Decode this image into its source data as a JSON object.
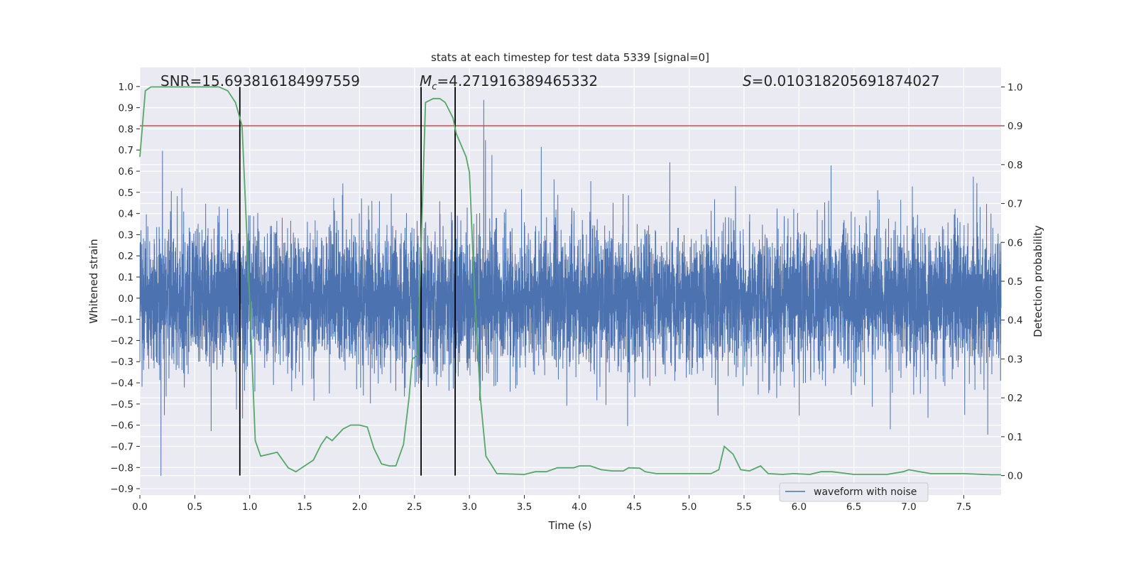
{
  "chart_data": {
    "type": "line",
    "title": "stats at each timestep for test data 5339 [signal=0]",
    "xlabel": "Time (s)",
    "ylabel": "Whitened strain",
    "ylabel_right": "Detection probability",
    "xlim": [
      0,
      7.84
    ],
    "ylim": [
      -0.93,
      1.09
    ],
    "ylim_right": [
      -0.05,
      1.05
    ],
    "grid": true,
    "x_ticks": [
      "0.0",
      "0.5",
      "1.0",
      "1.5",
      "2.0",
      "2.5",
      "3.0",
      "3.5",
      "4.0",
      "4.5",
      "5.0",
      "5.5",
      "6.0",
      "6.5",
      "7.0",
      "7.5"
    ],
    "x_tick_values": [
      0,
      0.5,
      1,
      1.5,
      2,
      2.5,
      3,
      3.5,
      4,
      4.5,
      5,
      5.5,
      6,
      6.5,
      7,
      7.5
    ],
    "y_ticks": [
      "1.0",
      "0.9",
      "0.8",
      "0.7",
      "0.6",
      "0.5",
      "0.4",
      "0.3",
      "0.2",
      "0.1",
      "0.0",
      "−0.1",
      "−0.2",
      "−0.3",
      "−0.4",
      "−0.5",
      "−0.6",
      "−0.7",
      "−0.8",
      "−0.9"
    ],
    "y_tick_values": [
      1,
      0.9,
      0.8,
      0.7,
      0.6,
      0.5,
      0.4,
      0.3,
      0.2,
      0.1,
      0,
      -0.1,
      -0.2,
      -0.3,
      -0.4,
      -0.5,
      -0.6,
      -0.7,
      -0.8,
      -0.9
    ],
    "y_ticks_right": [
      "1.0",
      "0.9",
      "0.8",
      "0.7",
      "0.6",
      "0.5",
      "0.4",
      "0.3",
      "0.2",
      "0.1",
      "0.0"
    ],
    "y_tick_values_right": [
      1,
      0.9,
      0.8,
      0.7,
      0.6,
      0.5,
      0.4,
      0.3,
      0.2,
      0.1,
      0
    ],
    "annotations": {
      "snr": "SNR=15.693816184997559",
      "mc_symbol": "M",
      "mc_sub": "c",
      "mc_value": "=4.271916389465332",
      "s_symbol": "S",
      "s_value": "=0.010318205691874027"
    },
    "legend": {
      "placement": "lower-right",
      "entries": [
        "waveform with noise"
      ]
    },
    "colors": {
      "waveform": "#4c72b0",
      "probability": "#55a868",
      "threshold": "#c44e52",
      "markers": "#000000",
      "background": "#eaeaf2"
    },
    "waveform": {
      "name": "waveform with noise",
      "axis": "left",
      "generated_noise": {
        "samples": 8000,
        "std": 0.16,
        "seed": 5339
      }
    },
    "threshold": {
      "axis": "right",
      "value": 0.9
    },
    "vertical_markers": {
      "axis": "right",
      "x": [
        0.91,
        2.56,
        2.87
      ],
      "from": 0,
      "to": 1
    },
    "probability": {
      "name": "detection probability",
      "axis": "right",
      "x": [
        0,
        0.05,
        0.1,
        0.72,
        0.8,
        0.87,
        0.93,
        1.0,
        1.05,
        1.1,
        1.25,
        1.35,
        1.42,
        1.5,
        1.58,
        1.65,
        1.7,
        1.75,
        1.85,
        1.92,
        2.0,
        2.07,
        2.13,
        2.2,
        2.27,
        2.33,
        2.4,
        2.45,
        2.48,
        2.53,
        2.6,
        2.67,
        2.73,
        2.78,
        2.85,
        2.88,
        2.97,
        3.0,
        3.05,
        3.1,
        3.15,
        3.25,
        3.5,
        3.6,
        3.7,
        3.8,
        3.95,
        4.0,
        4.1,
        4.2,
        4.3,
        4.4,
        4.45,
        4.55,
        4.6,
        4.7,
        5.2,
        5.27,
        5.32,
        5.4,
        5.47,
        5.55,
        5.65,
        5.72,
        5.85,
        5.95,
        6.1,
        6.2,
        6.3,
        6.5,
        6.8,
        6.95,
        7.0,
        7.1,
        7.2,
        7.5,
        7.75,
        7.84
      ],
      "y": [
        0.82,
        0.99,
        1.0,
        1.0,
        0.99,
        0.96,
        0.9,
        0.45,
        0.09,
        0.05,
        0.06,
        0.02,
        0.01,
        0.025,
        0.04,
        0.08,
        0.1,
        0.09,
        0.12,
        0.13,
        0.13,
        0.125,
        0.07,
        0.03,
        0.025,
        0.025,
        0.08,
        0.2,
        0.3,
        0.31,
        0.96,
        0.97,
        0.97,
        0.96,
        0.92,
        0.88,
        0.82,
        0.78,
        0.45,
        0.2,
        0.05,
        0.005,
        0.003,
        0.01,
        0.01,
        0.02,
        0.02,
        0.025,
        0.025,
        0.015,
        0.012,
        0.012,
        0.02,
        0.019,
        0.01,
        0.005,
        0.005,
        0.015,
        0.075,
        0.055,
        0.015,
        0.012,
        0.025,
        0.005,
        0.003,
        0.005,
        0.003,
        0.01,
        0.01,
        0.003,
        0.003,
        0.01,
        0.015,
        0.01,
        0.005,
        0.005,
        0.002,
        0.002
      ]
    }
  }
}
